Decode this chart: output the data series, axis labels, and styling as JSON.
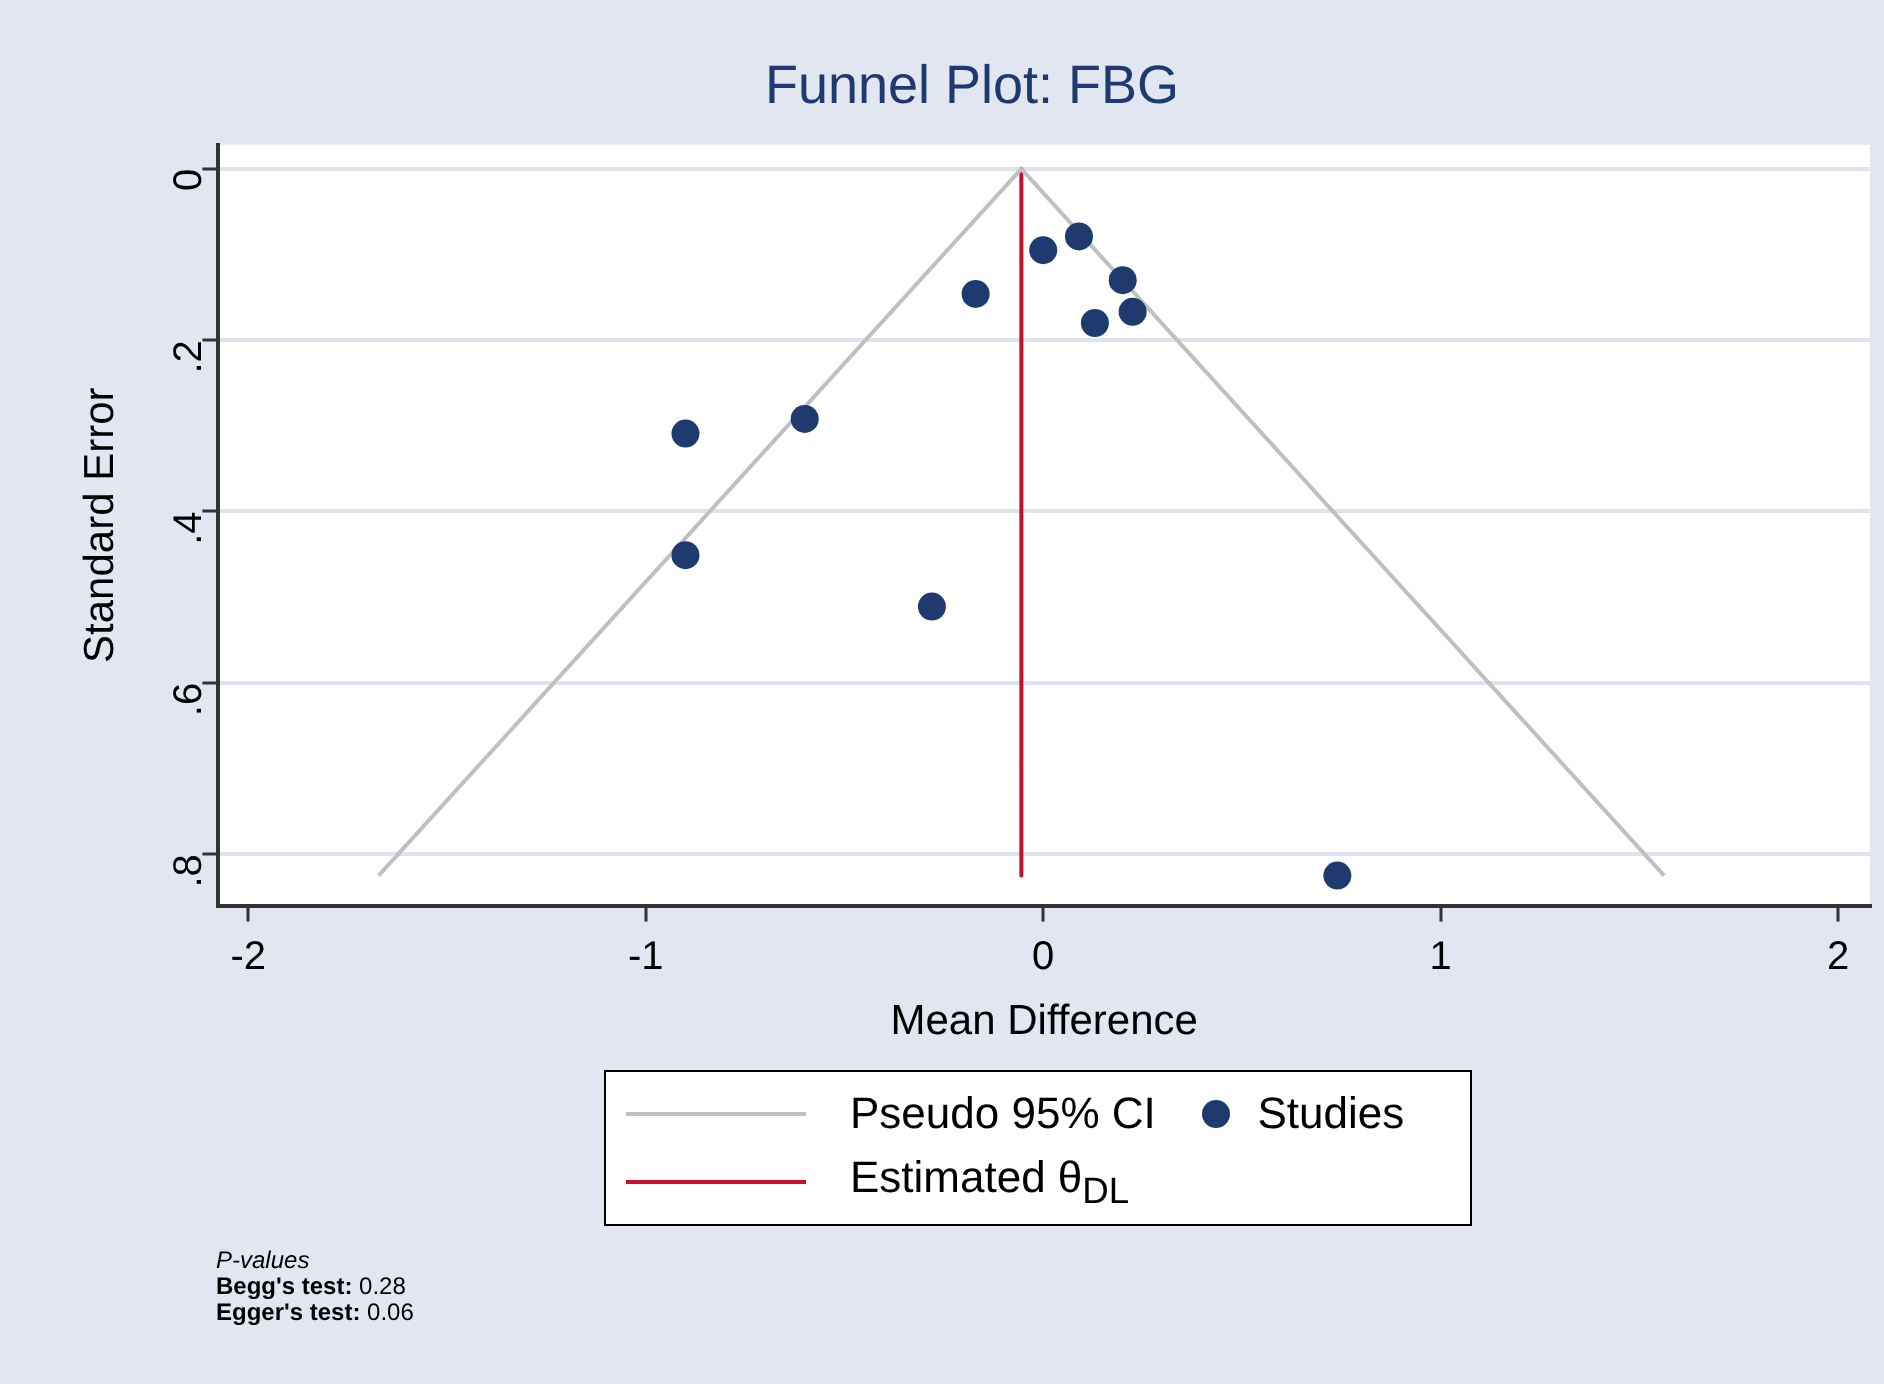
{
  "chart_data": {
    "type": "scatter",
    "title": "Funnel Plot: FBG",
    "xlabel": "Mean Difference",
    "ylabel": "Standard Error",
    "xlim": [
      -2.075,
      2.08
    ],
    "xticks": [
      -2,
      -1,
      0,
      1,
      2
    ],
    "ylim": [
      0.86,
      -0.028
    ],
    "yticks": [
      0,
      {
        "value": 0.2,
        "label": ".2"
      },
      {
        "value": 0.4,
        "label": ".4"
      },
      {
        "value": 0.6,
        "label": ".6"
      },
      {
        "value": 0.8,
        "label": ".8"
      }
    ],
    "grid": "y",
    "legend": "bottom",
    "series": [
      {
        "name": "Pseudo 95% CI",
        "type": "line",
        "marker": "none",
        "color": "#c0c0c0",
        "x": [
          -1.672,
          -0.055,
          1.562
        ],
        "values": [
          0.825,
          0,
          0.825
        ]
      },
      {
        "name": "Studies",
        "type": "scatter",
        "marker": "circle",
        "color": "#1f3a6e",
        "x": [
          0.0,
          0.09,
          -0.17,
          0.2,
          0.225,
          0.13,
          -0.6,
          -0.9,
          -0.9,
          -0.28,
          0.74
        ],
        "values": [
          0.095,
          0.079,
          0.146,
          0.13,
          0.167,
          0.18,
          0.292,
          0.309,
          0.451,
          0.511,
          0.825
        ]
      },
      {
        "name": "Estimated θ$_{DL}$",
        "type": "line",
        "marker": "none",
        "color": "#c8102e",
        "x": [
          -0.055,
          -0.055
        ],
        "values": [
          0,
          0.825
        ]
      }
    ],
    "annotations": [
      "P-values",
      "Begg's test: 0.28",
      "Egger's test: 0.06"
    ]
  }
}
